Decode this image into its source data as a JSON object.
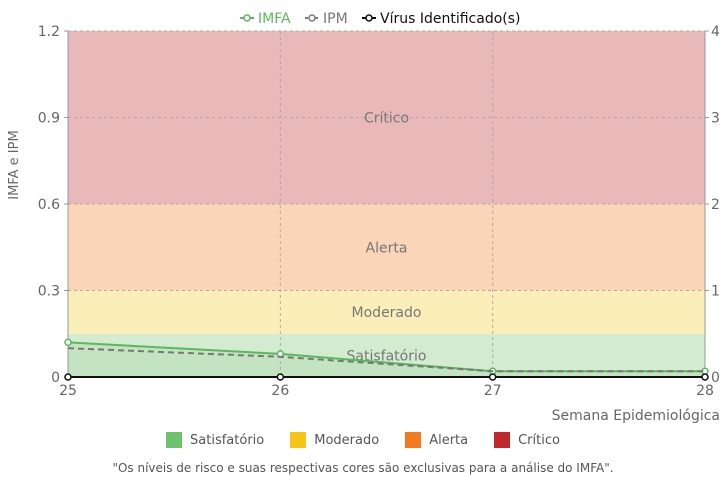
{
  "chart_data": {
    "type": "line",
    "x": [
      25,
      26,
      27,
      28
    ],
    "xlabel": "Semana Epidemiológica",
    "ylabel": "IMFA e IPM",
    "ylim": [
      0,
      1.2
    ],
    "y_ticks": [
      "0",
      "0.3",
      "0.6",
      "0.9",
      "1.2"
    ],
    "y2lim": [
      0,
      4
    ],
    "y2_ticks": [
      "0",
      "1",
      "2",
      "3",
      "4"
    ],
    "grid": true,
    "legend_position": "top",
    "series": [
      {
        "name": "IMFA",
        "values": [
          0.12,
          0.08,
          0.02,
          0.02
        ],
        "color": "#5cb85c",
        "style": "solid",
        "axis": "left"
      },
      {
        "name": "IPM",
        "values": [
          0.1,
          0.07,
          0.02,
          0.02
        ],
        "color": "#777777",
        "style": "dashed",
        "axis": "left"
      },
      {
        "name": "Vírus Identificado(s)",
        "values": [
          0,
          0,
          0,
          0
        ],
        "color": "#111111",
        "style": "solid",
        "axis": "right"
      }
    ],
    "risk_bands": [
      {
        "label": "Satisfatório",
        "from": 0,
        "to": 0.15,
        "color": "#d3ebd0",
        "legend_color": "#6cc36c"
      },
      {
        "label": "Moderado",
        "from": 0.15,
        "to": 0.3,
        "color": "#fbefb9",
        "legend_color": "#f5c518"
      },
      {
        "label": "Alerta",
        "from": 0.3,
        "to": 0.6,
        "color": "#fbd5b8",
        "legend_color": "#f47a20"
      },
      {
        "label": "Crítico",
        "from": 0.6,
        "to": 1.2,
        "color": "#e9b9b9",
        "legend_color": "#c0282d"
      }
    ]
  },
  "footnote": "\"Os níveis de risco e suas respectivas cores são exclusivas para a análise do IMFA\"."
}
